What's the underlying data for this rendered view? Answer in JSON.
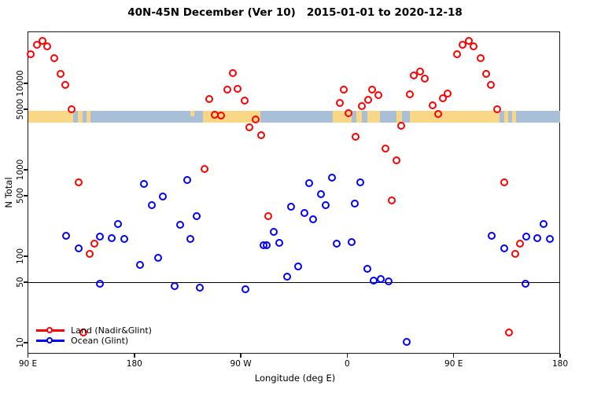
{
  "title": "40N-45N December (Ver 10)   2015-01-01 to 2020-12-18",
  "axes": {
    "x_label": "Longitude (deg E)",
    "y_label": "N Total",
    "x_ticks": [
      {
        "f": 0.0,
        "label": "90 E"
      },
      {
        "f": 0.2,
        "label": "180"
      },
      {
        "f": 0.4,
        "label": "90 W"
      },
      {
        "f": 0.6,
        "label": "0"
      },
      {
        "f": 0.8,
        "label": "90 E"
      },
      {
        "f": 1.0,
        "label": "180"
      }
    ],
    "y_ticks": [
      10,
      50,
      100,
      500,
      1000,
      5000,
      10000
    ],
    "y_scale": "log",
    "y_range": [
      7.4,
      40000
    ],
    "reference_line_value": 50
  },
  "legend": {
    "land_label": "Land (Nadir&Glint)",
    "ocean_label": "Ocean (Glint)"
  },
  "colors": {
    "land_series": "#ff0000",
    "ocean_series": "#0000ff",
    "strip_land": "#fad784",
    "strip_ocean": "#a9bfd8",
    "axis": "#1a1a1a"
  },
  "chart_data": {
    "type": "scatter",
    "title": "40N-45N December (Ver 10)   2015-01-01 to 2020-12-18",
    "xlabel": "Longitude (deg E)",
    "ylabel": "N Total",
    "x_axis_note": "longitude axis starts at 90E, crosses dateline at f=0.2, 90W at f=0.4, 0 at f=0.6, 90E at f=0.8, ends 180; lons >= 90E are plotted twice (both copies)",
    "series": [
      {
        "name": "Land (Nadir&Glint)",
        "color": "#ff0000",
        "points": [
          [
            93,
            21300
          ],
          [
            98,
            27700
          ],
          [
            103,
            30400
          ],
          [
            107,
            26200
          ],
          [
            113,
            19400
          ],
          [
            118,
            12600
          ],
          [
            122,
            9400
          ],
          [
            127.5,
            5000
          ],
          [
            133,
            710
          ],
          [
            142.5,
            105
          ],
          [
            146.5,
            138
          ],
          [
            137,
            13
          ],
          [
            -120.5,
            1000
          ],
          [
            -116.5,
            6450
          ],
          [
            -111.8,
            4300
          ],
          [
            -106.5,
            4150
          ],
          [
            -101,
            8300
          ],
          [
            -96,
            12900
          ],
          [
            -92,
            8500
          ],
          [
            -86.5,
            6200
          ],
          [
            -82.6,
            3030
          ],
          [
            -77.2,
            3740
          ],
          [
            -72.6,
            2460
          ],
          [
            -66.6,
            290
          ],
          [
            -6,
            5800
          ],
          [
            -2.3,
            8300
          ],
          [
            1.2,
            4420
          ],
          [
            7.2,
            2400
          ],
          [
            12.6,
            5400
          ],
          [
            18,
            6300
          ],
          [
            21.6,
            8300
          ],
          [
            26.5,
            7200
          ],
          [
            32.4,
            1720
          ],
          [
            37.8,
            433
          ],
          [
            42.3,
            1280
          ],
          [
            45.8,
            3160
          ],
          [
            53.6,
            7300
          ],
          [
            57,
            12150
          ],
          [
            61.7,
            13400
          ],
          [
            65.7,
            11100
          ],
          [
            72.4,
            5450
          ],
          [
            77,
            4320
          ],
          [
            81.6,
            6580
          ],
          [
            85,
            7450
          ]
        ]
      },
      {
        "name": "Ocean (Glint)",
        "color": "#0000ff",
        "points": [
          [
            122.5,
            170
          ],
          [
            133.5,
            123
          ],
          [
            151.5,
            165
          ],
          [
            161,
            160
          ],
          [
            166.5,
            235
          ],
          [
            172,
            157
          ],
          [
            151,
            47
          ],
          [
            -175,
            78
          ],
          [
            -171.5,
            671
          ],
          [
            -165,
            382
          ],
          [
            -159.7,
            94
          ],
          [
            -155.7,
            480
          ],
          [
            -145.7,
            45
          ],
          [
            -141,
            230
          ],
          [
            -135,
            760
          ],
          [
            -132.4,
            156
          ],
          [
            -127,
            290
          ],
          [
            -124.3,
            43
          ],
          [
            -86,
            41
          ],
          [
            -70.6,
            133
          ],
          [
            -67.4,
            133
          ],
          [
            -62,
            188
          ],
          [
            -57.4,
            140
          ],
          [
            -50.7,
            57
          ],
          [
            -47.3,
            366
          ],
          [
            -41.4,
            75
          ],
          [
            -35.5,
            310
          ],
          [
            -32,
            686
          ],
          [
            -28.7,
            262
          ],
          [
            -22,
            513
          ],
          [
            -18,
            382
          ],
          [
            -12.8,
            800
          ],
          [
            -8.8,
            139
          ],
          [
            3.9,
            144
          ],
          [
            6.5,
            400
          ],
          [
            11.2,
            700
          ],
          [
            17.1,
            70
          ],
          [
            22.5,
            52
          ],
          [
            28.5,
            54
          ],
          [
            35.5,
            51
          ],
          [
            50.4,
            10
          ]
        ]
      }
    ],
    "map_strip": {
      "description": "world land/ocean band for latitude 40N-45N drawn across the plot at N ~ 3500-5000",
      "segments": [
        {
          "f0": 0.0,
          "f1": 0.0857,
          "type": "land"
        },
        {
          "f0": 0.0857,
          "f1": 0.0946,
          "type": "ocean"
        },
        {
          "f0": 0.0946,
          "f1": 0.1026,
          "type": "land"
        },
        {
          "f0": 0.1026,
          "f1": 0.1096,
          "type": "ocean"
        },
        {
          "f0": 0.1096,
          "f1": 0.1176,
          "type": "land"
        },
        {
          "f0": 0.1176,
          "f1": 0.329,
          "type": "ocean"
        },
        {
          "f0": 0.305,
          "f1": 0.312,
          "type": "land-speck"
        },
        {
          "f0": 0.329,
          "f1": 0.437,
          "type": "land"
        },
        {
          "f0": 0.437,
          "f1": 0.573,
          "type": "ocean"
        },
        {
          "f0": 0.573,
          "f1": 0.608,
          "type": "land"
        },
        {
          "f0": 0.608,
          "f1": 0.617,
          "type": "ocean"
        },
        {
          "f0": 0.617,
          "f1": 0.628,
          "type": "land"
        },
        {
          "f0": 0.628,
          "f1": 0.638,
          "type": "ocean"
        },
        {
          "f0": 0.638,
          "f1": 0.662,
          "type": "land"
        },
        {
          "f0": 0.662,
          "f1": 0.692,
          "type": "ocean"
        },
        {
          "f0": 0.692,
          "f1": 0.703,
          "type": "land"
        },
        {
          "f0": 0.703,
          "f1": 0.718,
          "type": "ocean"
        },
        {
          "f0": 0.718,
          "f1": 0.8857,
          "type": "land"
        },
        {
          "f0": 0.8857,
          "f1": 0.8946,
          "type": "ocean"
        },
        {
          "f0": 0.8946,
          "f1": 0.9026,
          "type": "land"
        },
        {
          "f0": 0.9026,
          "f1": 0.9096,
          "type": "ocean"
        },
        {
          "f0": 0.9096,
          "f1": 0.9176,
          "type": "land"
        },
        {
          "f0": 0.9176,
          "f1": 1.0,
          "type": "ocean"
        }
      ]
    }
  }
}
